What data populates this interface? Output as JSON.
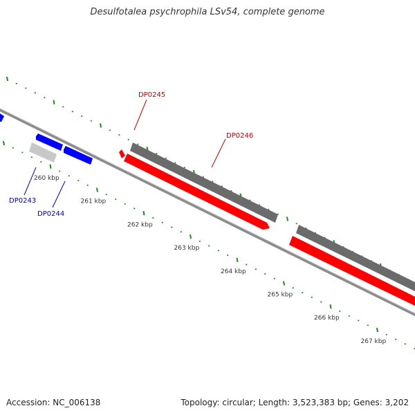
{
  "title": "Desulfotalea psychrophila LSv54, complete genome",
  "footer": {
    "accession": "Accession: NC_006138",
    "stats": "Topology: circular; Length: 3,523,383 bp; Genes: 3,202"
  },
  "colors": {
    "forward_gene": "#ff0000",
    "reverse_gene": "#0000ff",
    "pseudo_gene": "#c8c8c8",
    "cds_track": "#6b6b6b",
    "backbone": "#8c8c8c",
    "tick": "#1a8a1a",
    "label_forward": "#cc0000",
    "label_reverse": "#0000aa"
  },
  "ruler": [
    {
      "label": "260 kbp"
    },
    {
      "label": "261 kbp"
    },
    {
      "label": "262 kbp"
    },
    {
      "label": "263 kbp"
    },
    {
      "label": "264 kbp"
    },
    {
      "label": "265 kbp"
    },
    {
      "label": "266 kbp"
    },
    {
      "label": "267 kbp"
    }
  ],
  "genes": [
    {
      "id": "DP0243",
      "strand": "reverse"
    },
    {
      "id": "DP0244",
      "strand": "reverse"
    },
    {
      "id": "DP0245",
      "strand": "forward"
    },
    {
      "id": "DP0246",
      "strand": "forward"
    }
  ]
}
